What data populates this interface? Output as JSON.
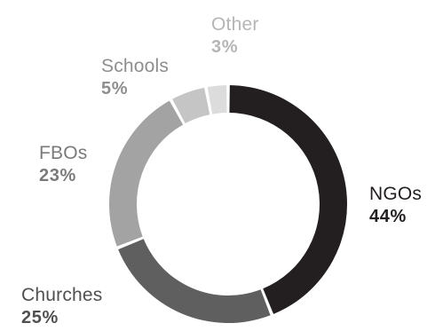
{
  "chart_data": {
    "type": "pie",
    "variant": "donut",
    "slices": [
      {
        "label": "NGOs",
        "value": 44,
        "value_label": "44%",
        "color": "#231f20",
        "label_color": "#231f20"
      },
      {
        "label": "Churches",
        "value": 25,
        "value_label": "25%",
        "color": "#5f5f5f",
        "label_color": "#505050"
      },
      {
        "label": "FBOs",
        "value": 23,
        "value_label": "23%",
        "color": "#a3a3a3",
        "label_color": "#7a7a7a"
      },
      {
        "label": "Schools",
        "value": 5,
        "value_label": "5%",
        "color": "#c5c5c5",
        "label_color": "#8e8e8e"
      },
      {
        "label": "Other",
        "value": 3,
        "value_label": "3%",
        "color": "#dcdcdc",
        "label_color": "#b5b5b5"
      }
    ],
    "start": "12 o'clock",
    "direction": "clockwise",
    "legend": "none"
  }
}
